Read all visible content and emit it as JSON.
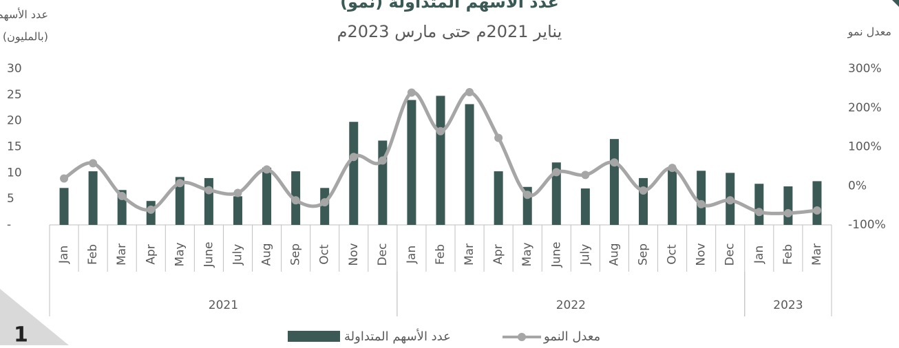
{
  "chart_data": {
    "type": "bar_line",
    "title": "عدد الأسهم المتداولة (نمو)",
    "subtitle": "يناير 2021م حتى مارس 2023م",
    "y_label_lines": [
      "عدد الأسهم",
      "(بالمليون)"
    ],
    "y2_label": "معدل نمو",
    "categories": [
      "Jan",
      "Feb",
      "Mar",
      "Apr",
      "May",
      "June",
      "July",
      "Aug",
      "Sep",
      "Oct",
      "Nov",
      "Dec",
      "Jan",
      "Feb",
      "Mar",
      "Apr",
      "May",
      "June",
      "July",
      "Aug",
      "Sep",
      "Oct",
      "Nov",
      "Dec",
      "Jan",
      "Feb",
      "Mar"
    ],
    "x_groups": [
      {
        "label": "2021",
        "span": 12
      },
      {
        "label": "2022",
        "span": 12
      },
      {
        "label": "2023",
        "span": 3
      }
    ],
    "series": [
      {
        "name": "عدد الأسهم المتداولة",
        "color": "#3b5a56",
        "kind": "bar",
        "values": [
          7.1,
          10.3,
          6.7,
          4.6,
          9.2,
          9.0,
          5.5,
          11.0,
          10.3,
          7.1,
          19.8,
          16.2,
          24.0,
          24.8,
          23.2,
          10.3,
          7.3,
          12.0,
          7.0,
          16.5,
          9.0,
          11.0,
          10.4,
          10.0,
          7.9,
          7.4,
          8.4
        ]
      },
      {
        "name": "معدل النمو",
        "color": "#a6a6a6",
        "kind": "line",
        "axis": "y2",
        "values": [
          19,
          58,
          -26,
          -61,
          7,
          -11,
          -18,
          42,
          -37,
          -42,
          74,
          65,
          239,
          140,
          240,
          123,
          -23,
          35,
          28,
          60,
          -12,
          46,
          -47,
          -37,
          -67,
          -70,
          -63
        ]
      }
    ],
    "ylim": [
      0,
      30
    ],
    "yticks": [
      {
        "value": 0,
        "label": "-"
      },
      5,
      10,
      15,
      20,
      25,
      30
    ],
    "y2lim": [
      -100,
      300
    ],
    "y2ticks": [
      {
        "value": -100,
        "label": "-100%"
      },
      {
        "value": 0,
        "label": "0%"
      },
      {
        "value": 100,
        "label": "100%"
      },
      {
        "value": 200,
        "label": "200%"
      },
      {
        "value": 300,
        "label": "300%"
      }
    ],
    "page_number": "1"
  }
}
